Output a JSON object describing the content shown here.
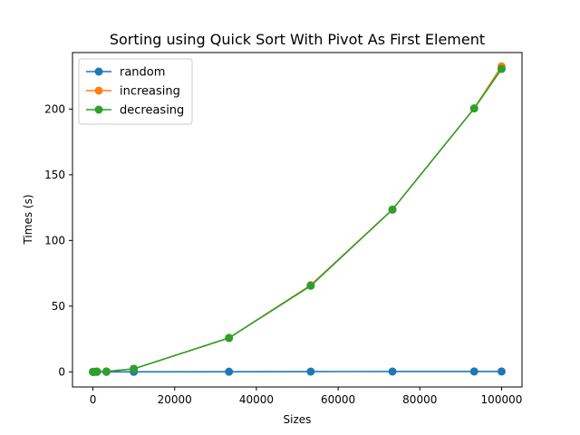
{
  "chart_data": {
    "type": "line",
    "title": "Sorting using Quick Sort With Pivot As First Element",
    "xlabel": "Sizes",
    "ylabel": "Times (s)",
    "xlim": [
      -5000,
      105000
    ],
    "ylim": [
      -11.5,
      243
    ],
    "xticks": [
      0,
      20000,
      40000,
      60000,
      80000,
      100000
    ],
    "yticks": [
      0,
      50,
      100,
      150,
      200
    ],
    "grid": false,
    "legend_position": "top-left",
    "series": [
      {
        "name": "random",
        "color": "#1f77b4",
        "x": [
          10,
          100,
          300,
          1000,
          3300,
          10000,
          33300,
          53300,
          73300,
          93300,
          100000
        ],
        "y": [
          0,
          0,
          0,
          0,
          0,
          0.03,
          0.1,
          0.2,
          0.25,
          0.3,
          0.3
        ]
      },
      {
        "name": "increasing",
        "color": "#ff7f0e",
        "x": [
          10,
          100,
          300,
          1000,
          3300,
          10000,
          33300,
          53300,
          73300,
          93300,
          100000
        ],
        "y": [
          0,
          0,
          0,
          0.2,
          0.3,
          2.3,
          25.8,
          66,
          123.5,
          200.5,
          232.5
        ]
      },
      {
        "name": "decreasing",
        "color": "#2ca02c",
        "x": [
          10,
          100,
          300,
          1000,
          3300,
          10000,
          33300,
          53300,
          73300,
          93300,
          100000
        ],
        "y": [
          0,
          0,
          0,
          0.2,
          0.3,
          2.3,
          25.8,
          65.5,
          123.5,
          200.5,
          230.5
        ]
      }
    ]
  }
}
